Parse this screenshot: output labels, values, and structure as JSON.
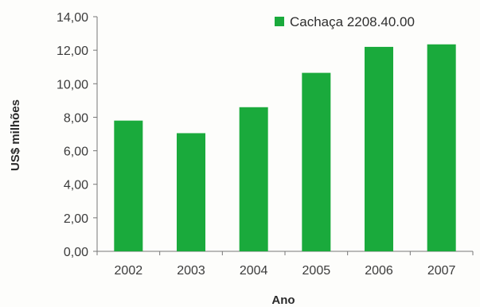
{
  "chart_data": {
    "type": "bar",
    "categories": [
      "2002",
      "2003",
      "2004",
      "2005",
      "2006",
      "2007"
    ],
    "series": [
      {
        "name": "Cachaça 2208.40.00",
        "values": [
          7.8,
          7.05,
          8.6,
          10.65,
          12.2,
          12.35
        ]
      }
    ],
    "title": "",
    "xlabel": "Ano",
    "ylabel": "US$ milhões",
    "ylim": [
      0,
      14
    ],
    "yticks": [
      "0,00",
      "2,00",
      "4,00",
      "6,00",
      "8,00",
      "10,00",
      "12,00",
      "14,00"
    ],
    "grid": false,
    "legend_position": "top-right",
    "colors": {
      "bar": "#1aaa3c",
      "axis": "#777777"
    }
  }
}
